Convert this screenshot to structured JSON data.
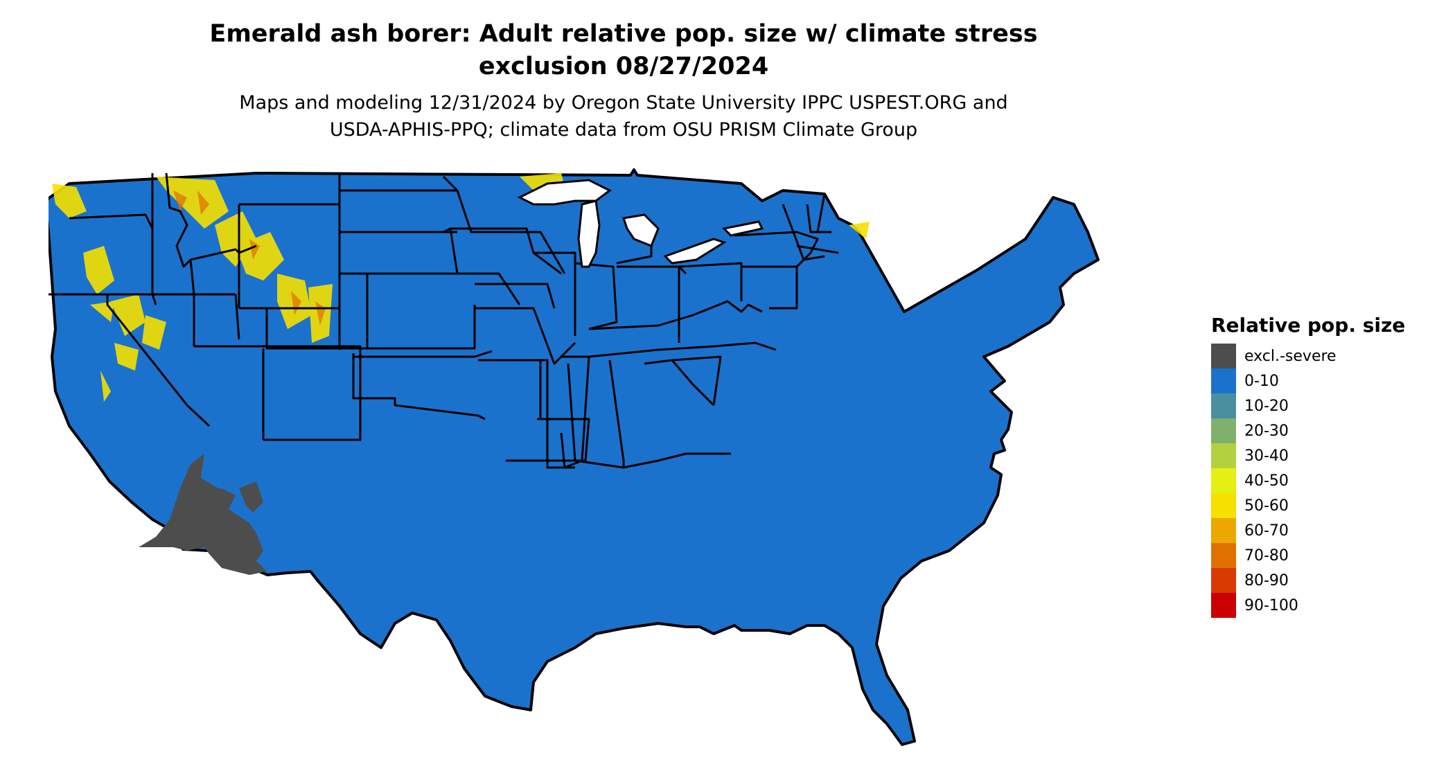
{
  "title": {
    "line1": "Emerald ash borer: Adult relative pop. size w/ climate stress",
    "line2": "exclusion 08/27/2024"
  },
  "subtitle": {
    "line1": "Maps and modeling 12/31/2024 by Oregon State University IPPC USPEST.ORG and",
    "line2": "USDA-APHIS-PPQ; climate data from OSU PRISM Climate Group"
  },
  "legend": {
    "title": "Relative pop. size",
    "items": [
      {
        "label": "excl.-severe",
        "color": "#4d4d4d"
      },
      {
        "label": "0-10",
        "color": "#1b72cc"
      },
      {
        "label": "10-20",
        "color": "#4a8fa0"
      },
      {
        "label": "20-30",
        "color": "#7fb06d"
      },
      {
        "label": "30-40",
        "color": "#b3d13f"
      },
      {
        "label": "40-50",
        "color": "#e4ef14"
      },
      {
        "label": "50-60",
        "color": "#f6e000"
      },
      {
        "label": "60-70",
        "color": "#eaa800"
      },
      {
        "label": "70-80",
        "color": "#e07000"
      },
      {
        "label": "80-90",
        "color": "#d83a00"
      },
      {
        "label": "90-100",
        "color": "#cc0000"
      }
    ]
  },
  "map": {
    "base_color": "#1b72cc",
    "excluded_color": "#4d4d4d",
    "border_color": "#000000"
  }
}
